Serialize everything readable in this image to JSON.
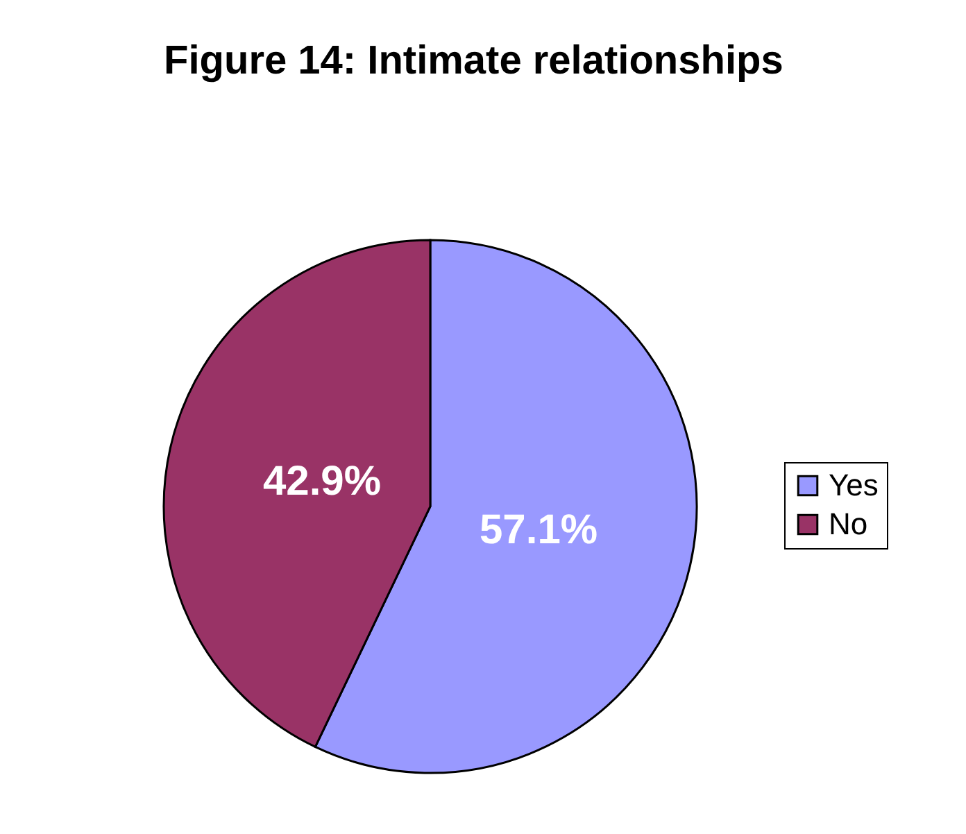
{
  "chart_data": {
    "type": "pie",
    "title": "Figure 14: Intimate relationships",
    "categories": [
      "Yes",
      "No"
    ],
    "values": [
      57.1,
      42.9
    ],
    "colors": [
      "#9999ff",
      "#993366"
    ],
    "value_labels": [
      "57.1%",
      "42.9%"
    ],
    "legend": "right"
  }
}
